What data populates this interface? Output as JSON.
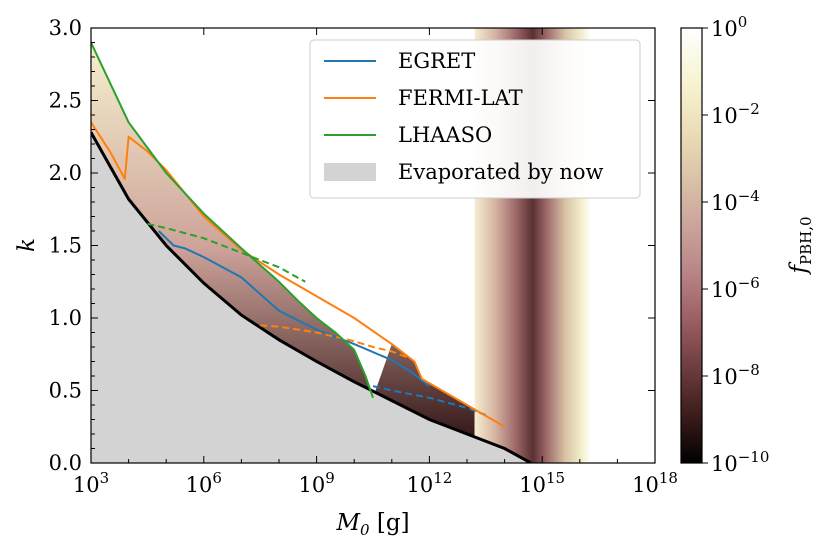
{
  "chart_data": {
    "type": "line",
    "xlabel": "M_0 [g]",
    "ylabel": "k",
    "xscale": "log",
    "xlim": [
      1000.0,
      1e+18
    ],
    "ylim": [
      0.0,
      3.0
    ],
    "x_ticks": [
      {
        "base": "10",
        "exp": "3"
      },
      {
        "base": "10",
        "exp": "6"
      },
      {
        "base": "10",
        "exp": "9"
      },
      {
        "base": "10",
        "exp": "12"
      },
      {
        "base": "10",
        "exp": "15"
      },
      {
        "base": "10",
        "exp": "18"
      }
    ],
    "y_ticks": [
      "0.0",
      "0.5",
      "1.0",
      "1.5",
      "2.0",
      "2.5",
      "3.0"
    ],
    "legend_position": "top-right",
    "legend": [
      {
        "label": "EGRET",
        "color": "#1f77b4",
        "kind": "line"
      },
      {
        "label": "FERMI-LAT",
        "color": "#ff7f0e",
        "kind": "line"
      },
      {
        "label": "LHAASO",
        "color": "#2ca02c",
        "kind": "line"
      },
      {
        "label": "Evaporated by now",
        "color": "#d3d3d3",
        "kind": "patch"
      }
    ],
    "colorbar": {
      "label": "f_PBH,0",
      "scale": "log",
      "ticks": [
        {
          "base": "10",
          "exp": "0"
        },
        {
          "base": "10",
          "exp": "−2"
        },
        {
          "base": "10",
          "exp": "−4"
        },
        {
          "base": "10",
          "exp": "−6"
        },
        {
          "base": "10",
          "exp": "−8"
        },
        {
          "base": "10",
          "exp": "−10"
        }
      ],
      "range_log10": [
        -10,
        0
      ],
      "colormap": [
        "#000000",
        "#3c1c1c",
        "#6e3d3f",
        "#9c5f63",
        "#b98587",
        "#cba59c",
        "#dcc4a8",
        "#ecdfb9",
        "#f8f4d4",
        "#ffffff"
      ]
    },
    "evaporation_boundary": {
      "log10_M0": [
        3.0,
        4.0,
        5.0,
        6.0,
        7.0,
        8.0,
        9.0,
        10.0,
        11.0,
        12.0,
        13.0,
        14.0,
        14.7
      ],
      "k": [
        2.28,
        1.82,
        1.5,
        1.24,
        1.02,
        0.85,
        0.7,
        0.56,
        0.43,
        0.3,
        0.2,
        0.1,
        0.0
      ]
    },
    "series": [
      {
        "name": "EGRET",
        "color": "#1f77b4",
        "style": "solid",
        "log10_M0": [
          4.8,
          5.2,
          5.5,
          6.0,
          7.0,
          8.0,
          9.0,
          10.0,
          11.0,
          11.5,
          12.0
        ],
        "k": [
          1.6,
          1.5,
          1.48,
          1.42,
          1.28,
          1.05,
          0.92,
          0.82,
          0.71,
          0.63,
          0.53
        ]
      },
      {
        "name": "EGRET",
        "color": "#1f77b4",
        "style": "dashed",
        "log10_M0": [
          10.5,
          11.0,
          12.0,
          13.0,
          13.5
        ],
        "k": [
          0.53,
          0.5,
          0.45,
          0.38,
          0.33
        ]
      },
      {
        "name": "FERMI-LAT",
        "color": "#ff7f0e",
        "style": "solid",
        "log10_M0": [
          3.0,
          3.5,
          3.9,
          4.0,
          4.5,
          5.0,
          6.0,
          7.0,
          8.0,
          9.0,
          10.0,
          11.0,
          11.6,
          11.8,
          12.0,
          13.0,
          14.0
        ],
        "k": [
          2.35,
          2.15,
          1.96,
          2.25,
          2.15,
          2.02,
          1.7,
          1.47,
          1.3,
          1.15,
          1.0,
          0.82,
          0.7,
          0.58,
          0.55,
          0.4,
          0.25
        ]
      },
      {
        "name": "FERMI-LAT",
        "color": "#ff7f0e",
        "style": "dashed",
        "log10_M0": [
          7.5,
          8.0,
          9.0,
          10.0,
          10.5,
          11.0,
          11.5
        ],
        "k": [
          0.95,
          0.94,
          0.9,
          0.84,
          0.8,
          0.77,
          0.72
        ]
      },
      {
        "name": "LHAASO",
        "color": "#2ca02c",
        "style": "solid",
        "log10_M0": [
          3.0,
          4.0,
          5.0,
          6.0,
          7.0,
          8.0,
          8.5,
          9.0,
          9.5,
          10.0,
          10.3,
          10.5
        ],
        "k": [
          2.9,
          2.35,
          2.0,
          1.72,
          1.48,
          1.25,
          1.12,
          1.0,
          0.9,
          0.78,
          0.6,
          0.45
        ]
      },
      {
        "name": "LHAASO",
        "color": "#2ca02c",
        "style": "dashed",
        "log10_M0": [
          4.5,
          5.0,
          6.0,
          7.0,
          8.0,
          8.7
        ],
        "k": [
          1.65,
          1.62,
          1.55,
          1.45,
          1.35,
          1.25
        ]
      }
    ],
    "annotations": []
  }
}
